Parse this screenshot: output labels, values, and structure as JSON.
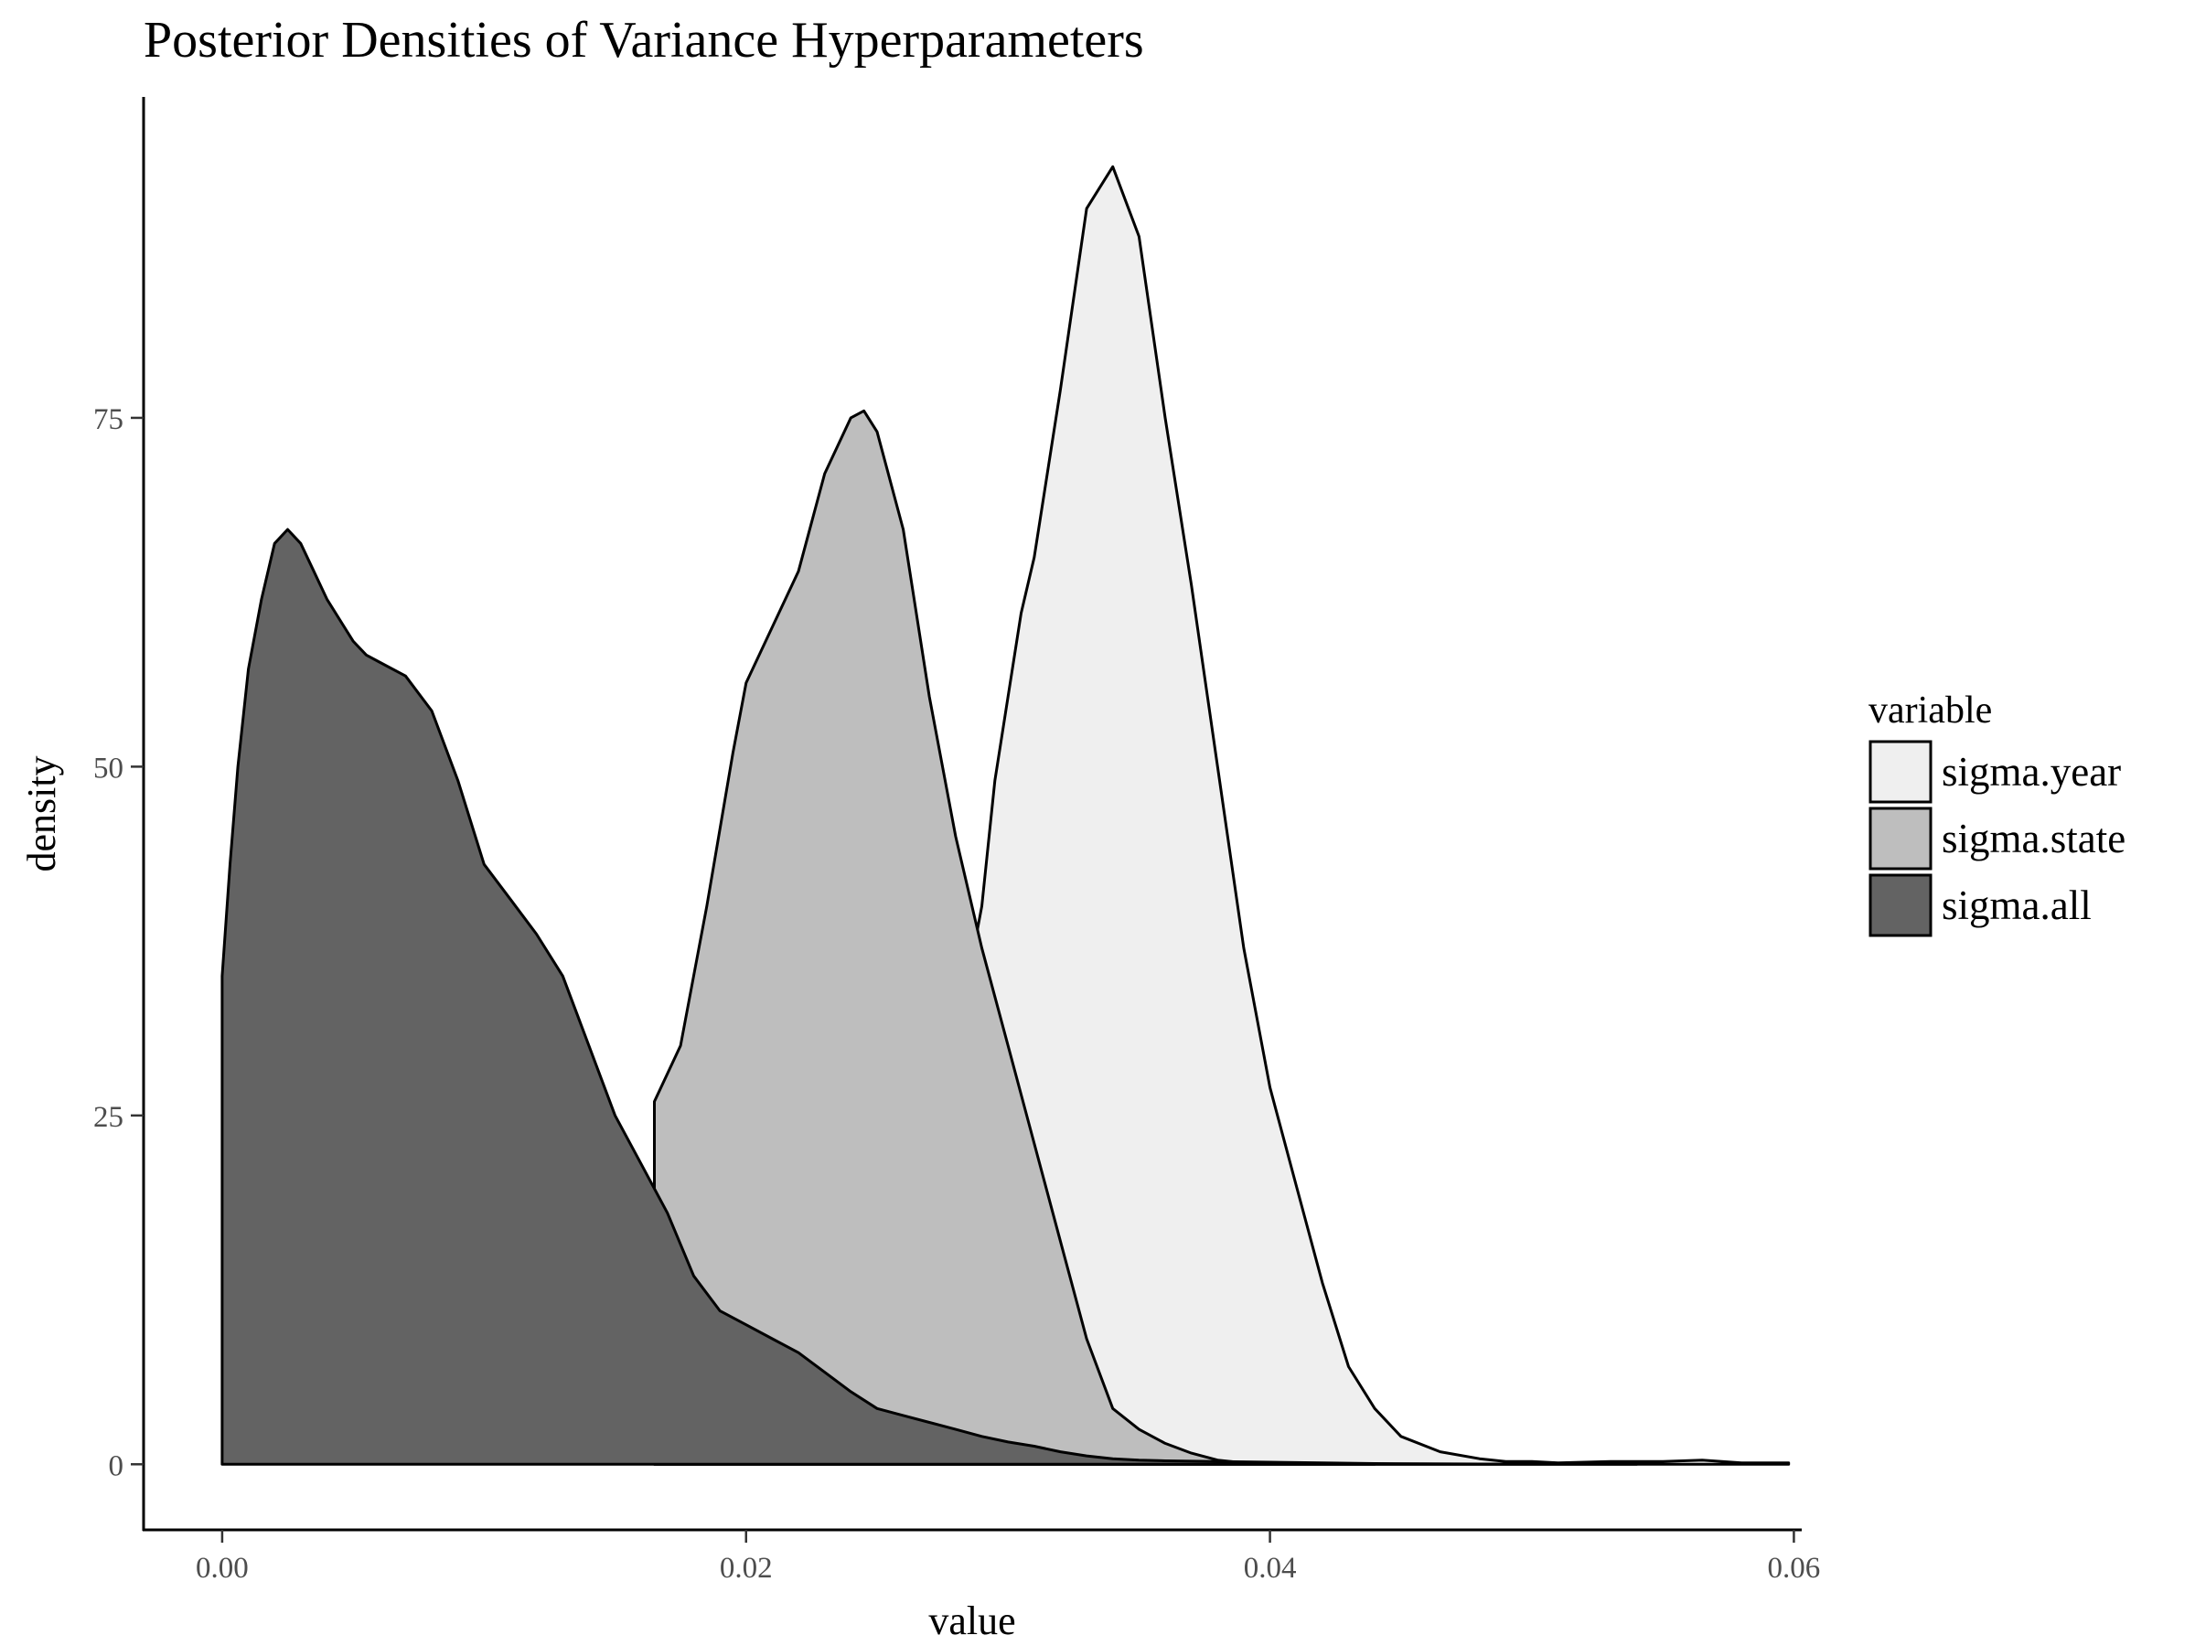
{
  "chart_data": {
    "type": "area",
    "title": "Posterior Densities of Variance Hyperparameters",
    "xlabel": "value",
    "ylabel": "density",
    "xlim": [
      -0.003,
      0.0603
    ],
    "ylim": [
      -4.7,
      98
    ],
    "x_ticks": [
      "0.00",
      "0.02",
      "0.04",
      "0.06"
    ],
    "x_tick_values": [
      0.0,
      0.02,
      0.04,
      0.06
    ],
    "y_ticks": [
      "0",
      "25",
      "50",
      "75"
    ],
    "y_tick_values": [
      0,
      25,
      50,
      75
    ],
    "grid": false,
    "legend": {
      "title": "variable",
      "position": "right"
    },
    "series": [
      {
        "name": "sigma.year",
        "color": "#efefef",
        "x": [
          0.0165,
          0.0185,
          0.02,
          0.0215,
          0.025,
          0.029,
          0.0295,
          0.0305,
          0.031,
          0.032,
          0.033,
          0.034,
          0.035,
          0.036,
          0.037,
          0.038,
          0.039,
          0.04,
          0.041,
          0.042,
          0.043,
          0.044,
          0.045,
          0.0465,
          0.048,
          0.049,
          0.05,
          0.051,
          0.052,
          0.053,
          0.055,
          0.0565,
          0.058,
          0.0598
        ],
        "values": [
          0,
          0,
          0,
          0,
          0,
          40,
          49,
          61,
          65,
          77,
          90,
          93,
          88,
          75,
          63,
          50,
          37,
          27,
          20,
          13,
          7,
          4,
          2,
          0.9,
          0.4,
          0.2,
          0.2,
          0.1,
          0.15,
          0.2,
          0.2,
          0.3,
          0.1,
          0.1
        ]
      },
      {
        "name": "sigma.state",
        "color": "#bebebe",
        "x": [
          0.0165,
          0.0175,
          0.0185,
          0.0195,
          0.02,
          0.021,
          0.022,
          0.023,
          0.024,
          0.0245,
          0.025,
          0.026,
          0.027,
          0.028,
          0.029,
          0.03,
          0.031,
          0.032,
          0.033,
          0.034,
          0.035,
          0.036,
          0.037,
          0.038,
          0.039,
          0.04,
          0.041,
          0.042,
          0.043,
          0.044
        ],
        "values": [
          26,
          30,
          40,
          51,
          56,
          60,
          64,
          71,
          75,
          75.5,
          74,
          67,
          55,
          45,
          37,
          30,
          23,
          16,
          9,
          4,
          2.5,
          1.5,
          0.8,
          0.3,
          0.1,
          0.05,
          0.03,
          0.02,
          0.01,
          0
        ]
      },
      {
        "name": "sigma.all",
        "color": "#636363",
        "x": [
          0.0,
          0.0003,
          0.0006,
          0.001,
          0.0015,
          0.002,
          0.0025,
          0.003,
          0.0035,
          0.004,
          0.005,
          0.0055,
          0.006,
          0.007,
          0.008,
          0.009,
          0.01,
          0.011,
          0.012,
          0.013,
          0.014,
          0.015,
          0.016,
          0.017,
          0.018,
          0.019,
          0.02,
          0.021,
          0.022,
          0.023,
          0.024,
          0.025,
          0.026,
          0.027,
          0.028,
          0.029,
          0.03,
          0.031,
          0.032,
          0.033,
          0.034,
          0.035,
          0.036,
          0.038,
          0.04,
          0.042,
          0.044,
          0.046,
          0.048,
          0.05,
          0.052,
          0.054
        ],
        "values": [
          35,
          43,
          50,
          57,
          62,
          66,
          67,
          66,
          64,
          62,
          59,
          58,
          57.5,
          56.5,
          54,
          49,
          43,
          40.5,
          38,
          35,
          30,
          25,
          21.5,
          18,
          13.5,
          11,
          10,
          9,
          8,
          6.6,
          5.2,
          4,
          3.5,
          3,
          2.5,
          2,
          1.6,
          1.3,
          0.9,
          0.6,
          0.4,
          0.3,
          0.25,
          0.2,
          0.15,
          0.1,
          0.05,
          0.03,
          0.02,
          0.01,
          0.01,
          0
        ]
      }
    ]
  }
}
